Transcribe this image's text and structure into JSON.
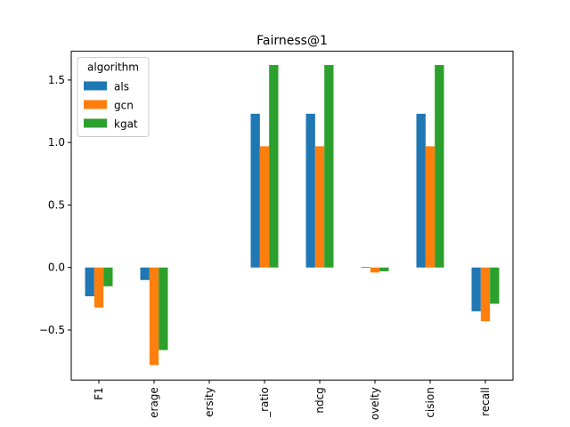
{
  "chart_data": {
    "type": "bar",
    "title": "Fairness@1",
    "xlabel": "",
    "ylabel": "",
    "ylim": [
      -0.9,
      1.73
    ],
    "yticks": [
      -0.5,
      0.0,
      0.5,
      1.0,
      1.5
    ],
    "ytick_labels": [
      "−0.5",
      "0.0",
      "0.5",
      "1.0",
      "1.5"
    ],
    "categories": [
      "F1",
      "erage",
      "ersity",
      "_ratio",
      "ndcg",
      "ovelty",
      "cision",
      "recall"
    ],
    "legend": {
      "title": "algorithm",
      "placement": "top-left"
    },
    "grid": false,
    "series": [
      {
        "name": "als",
        "color": "#1f77b4",
        "values": [
          -0.23,
          -0.1,
          0.0,
          1.23,
          1.23,
          0.005,
          1.23,
          -0.35
        ]
      },
      {
        "name": "gcn",
        "color": "#ff7f0e",
        "values": [
          -0.32,
          -0.78,
          0.0,
          0.97,
          0.97,
          -0.04,
          0.97,
          -0.43
        ]
      },
      {
        "name": "kgat",
        "color": "#2ca02c",
        "values": [
          -0.15,
          -0.66,
          0.0,
          1.62,
          1.62,
          -0.03,
          1.62,
          -0.29
        ]
      }
    ]
  }
}
